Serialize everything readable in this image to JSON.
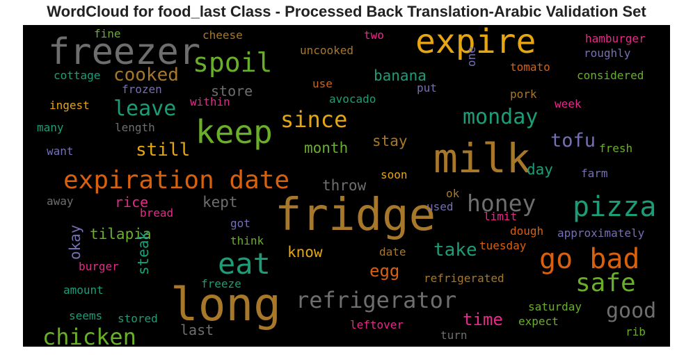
{
  "chart_data": {
    "type": "wordcloud",
    "title": "WordCloud for food_last Class - Processed Back Translation-Arabic Validation Set",
    "background": "#000000",
    "palette": {
      "gray": "#6e6e6e",
      "gold": "#e6a612",
      "green": "#6aaf2a",
      "brown": "#a8782a",
      "teal": "#1b9e77",
      "orange": "#d9600c",
      "pink": "#e7298a",
      "purple": "#7570b3"
    },
    "words": [
      {
        "text": "freezer",
        "weight": 52,
        "color": "gray"
      },
      {
        "text": "expire",
        "weight": 48,
        "color": "gold"
      },
      {
        "text": "spoil",
        "weight": 38,
        "color": "green"
      },
      {
        "text": "cooked",
        "weight": 26,
        "color": "brown"
      },
      {
        "text": "leave",
        "weight": 30,
        "color": "teal"
      },
      {
        "text": "keep",
        "weight": 46,
        "color": "green"
      },
      {
        "text": "since",
        "weight": 32,
        "color": "gold"
      },
      {
        "text": "monday",
        "weight": 30,
        "color": "teal"
      },
      {
        "text": "milk",
        "weight": 58,
        "color": "brown"
      },
      {
        "text": "expiration date",
        "weight": 36,
        "color": "orange"
      },
      {
        "text": "still",
        "weight": 26,
        "color": "gold"
      },
      {
        "text": "tofu",
        "weight": 27,
        "color": "purple"
      },
      {
        "text": "fridge",
        "weight": 64,
        "color": "brown"
      },
      {
        "text": "pizza",
        "weight": 40,
        "color": "teal"
      },
      {
        "text": "honey",
        "weight": 33,
        "color": "gray"
      },
      {
        "text": "long",
        "weight": 66,
        "color": "brown"
      },
      {
        "text": "eat",
        "weight": 42,
        "color": "teal"
      },
      {
        "text": "go bad",
        "weight": 40,
        "color": "orange"
      },
      {
        "text": "safe",
        "weight": 36,
        "color": "green"
      },
      {
        "text": "refrigerator",
        "weight": 32,
        "color": "gray"
      },
      {
        "text": "chicken",
        "weight": 32,
        "color": "green"
      },
      {
        "text": "good",
        "weight": 30,
        "color": "gray"
      },
      {
        "text": "take",
        "weight": 26,
        "color": "teal"
      },
      {
        "text": "time",
        "weight": 24,
        "color": "pink"
      },
      {
        "text": "egg",
        "weight": 24,
        "color": "orange"
      },
      {
        "text": "banana",
        "weight": 21,
        "color": "teal"
      },
      {
        "text": "store",
        "weight": 20,
        "color": "gray"
      },
      {
        "text": "month",
        "weight": 21,
        "color": "green"
      },
      {
        "text": "stay",
        "weight": 21,
        "color": "brown"
      },
      {
        "text": "day",
        "weight": 21,
        "color": "teal"
      },
      {
        "text": "throw",
        "weight": 21,
        "color": "gray"
      },
      {
        "text": "kept",
        "weight": 21,
        "color": "gray"
      },
      {
        "text": "rice",
        "weight": 20,
        "color": "pink"
      },
      {
        "text": "tilapia",
        "weight": 21,
        "color": "green"
      },
      {
        "text": "know",
        "weight": 21,
        "color": "gold"
      },
      {
        "text": "steak",
        "weight": 21,
        "color": "teal"
      },
      {
        "text": "okay",
        "weight": 21,
        "color": "purple"
      },
      {
        "text": "last",
        "weight": 20,
        "color": "gray"
      },
      {
        "text": "fine",
        "weight": 16,
        "color": "green"
      },
      {
        "text": "cheese",
        "weight": 16,
        "color": "brown"
      },
      {
        "text": "two",
        "weight": 16,
        "color": "pink"
      },
      {
        "text": "hamburger",
        "weight": 16,
        "color": "pink"
      },
      {
        "text": "roughly",
        "weight": 16,
        "color": "purple"
      },
      {
        "text": "uncooked",
        "weight": 16,
        "color": "brown"
      },
      {
        "text": "cottage",
        "weight": 16,
        "color": "teal"
      },
      {
        "text": "frozen",
        "weight": 16,
        "color": "purple"
      },
      {
        "text": "one",
        "weight": 16,
        "color": "purple"
      },
      {
        "text": "tomato",
        "weight": 16,
        "color": "orange"
      },
      {
        "text": "considered",
        "weight": 16,
        "color": "green"
      },
      {
        "text": "use",
        "weight": 16,
        "color": "orange"
      },
      {
        "text": "put",
        "weight": 16,
        "color": "purple"
      },
      {
        "text": "avocado",
        "weight": 16,
        "color": "teal"
      },
      {
        "text": "pork",
        "weight": 16,
        "color": "brown"
      },
      {
        "text": "ingest",
        "weight": 16,
        "color": "gold"
      },
      {
        "text": "within",
        "weight": 16,
        "color": "pink"
      },
      {
        "text": "week",
        "weight": 16,
        "color": "pink"
      },
      {
        "text": "many",
        "weight": 16,
        "color": "teal"
      },
      {
        "text": "length",
        "weight": 16,
        "color": "gray"
      },
      {
        "text": "want",
        "weight": 16,
        "color": "purple"
      },
      {
        "text": "fresh",
        "weight": 16,
        "color": "green"
      },
      {
        "text": "farm",
        "weight": 16,
        "color": "purple"
      },
      {
        "text": "soon",
        "weight": 16,
        "color": "gold"
      },
      {
        "text": "away",
        "weight": 16,
        "color": "gray"
      },
      {
        "text": "bread",
        "weight": 16,
        "color": "pink"
      },
      {
        "text": "ok",
        "weight": 16,
        "color": "brown"
      },
      {
        "text": "used",
        "weight": 16,
        "color": "purple"
      },
      {
        "text": "limit",
        "weight": 16,
        "color": "pink"
      },
      {
        "text": "got",
        "weight": 16,
        "color": "purple"
      },
      {
        "text": "dough",
        "weight": 16,
        "color": "orange"
      },
      {
        "text": "approximately",
        "weight": 16,
        "color": "purple"
      },
      {
        "text": "think",
        "weight": 16,
        "color": "green"
      },
      {
        "text": "date",
        "weight": 16,
        "color": "brown"
      },
      {
        "text": "tuesday",
        "weight": 16,
        "color": "orange"
      },
      {
        "text": "burger",
        "weight": 16,
        "color": "pink"
      },
      {
        "text": "amount",
        "weight": 16,
        "color": "teal"
      },
      {
        "text": "freeze",
        "weight": 16,
        "color": "teal"
      },
      {
        "text": "refrigerated",
        "weight": 16,
        "color": "brown"
      },
      {
        "text": "saturday",
        "weight": 16,
        "color": "green"
      },
      {
        "text": "seems",
        "weight": 16,
        "color": "teal"
      },
      {
        "text": "stored",
        "weight": 16,
        "color": "teal"
      },
      {
        "text": "leftover",
        "weight": 16,
        "color": "pink"
      },
      {
        "text": "expect",
        "weight": 16,
        "color": "green"
      },
      {
        "text": "rib",
        "weight": 16,
        "color": "green"
      },
      {
        "text": "turn",
        "weight": 16,
        "color": "gray"
      }
    ]
  }
}
